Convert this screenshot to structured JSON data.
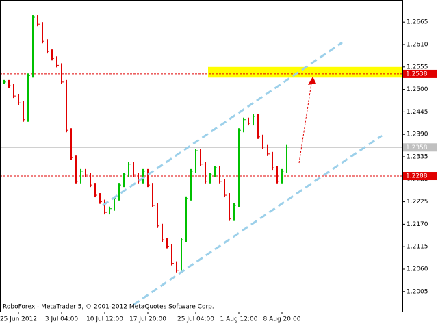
{
  "chart_data": {
    "type": "price-bars",
    "annotation": "RoboForex - MetaTrader 5, © 2001-2012 MetaQuotes Software Corp.",
    "categories": [
      null,
      null,
      null,
      "25 Jun 2012",
      null,
      null,
      null,
      null,
      null,
      null,
      null,
      null,
      "3 Jul 04:00",
      null,
      null,
      null,
      null,
      null,
      null,
      null,
      null,
      "10 Jul 12:00",
      null,
      null,
      null,
      null,
      null,
      null,
      null,
      null,
      "17 Jul 20:00",
      null,
      null,
      null,
      null,
      null,
      null,
      null,
      null,
      null,
      "25 Jul 04:00",
      null,
      null,
      null,
      null,
      null,
      null,
      null,
      null,
      "1 Aug 12:00",
      null,
      null,
      null,
      null,
      null,
      null,
      null,
      null,
      "8 Aug 20:00",
      null
    ],
    "values": [
      1.2518,
      1.2509,
      1.2484,
      1.2467,
      1.2426,
      1.2534,
      1.2677,
      1.266,
      1.2618,
      1.2593,
      1.2576,
      1.2559,
      1.2518,
      1.24,
      1.2333,
      1.2275,
      1.23,
      1.2291,
      1.2266,
      1.2241,
      1.2225,
      1.2199,
      1.2208,
      1.2233,
      1.2266,
      1.2291,
      1.2317,
      1.2291,
      1.2275,
      1.23,
      1.2266,
      1.2216,
      1.2166,
      1.2132,
      1.2116,
      1.2074,
      1.2057,
      1.2132,
      1.2233,
      1.23,
      1.235,
      1.2317,
      1.2275,
      1.2291,
      1.2308,
      1.2275,
      1.2241,
      1.2183,
      1.2216,
      1.24,
      1.2426,
      1.2417,
      1.2434,
      1.2384,
      1.2359,
      1.2342,
      1.2308,
      1.2275,
      1.23,
      1.2359
    ],
    "up_color": "#00c000",
    "down_color": "#e00000",
    "ylim": [
      1.1956,
      1.2719
    ],
    "yticks": [
      1.2665,
      {
        "value": 1.261,
        "label": "1.2610"
      },
      1.2555,
      {
        "value": 1.25,
        "label": "1.2500"
      },
      1.2445,
      {
        "value": 1.239,
        "label": "1.2390"
      },
      1.2335,
      {
        "value": 1.228,
        "label": "1.2280"
      },
      1.2225,
      {
        "value": 1.217,
        "label": "1.2170"
      },
      1.2115,
      {
        "value": 1.206,
        "label": "1.2060"
      },
      1.2005
    ],
    "price_levels": [
      {
        "value": 1.2538,
        "color": "#e00000"
      },
      {
        "value": 1.2288,
        "color": "#e00000"
      },
      {
        "value": 1.2358,
        "color": "#c0c0c0"
      }
    ],
    "zone": {
      "ylim": [
        1.2529,
        1.2555
      ],
      "color": "#ffff00"
    }
  }
}
